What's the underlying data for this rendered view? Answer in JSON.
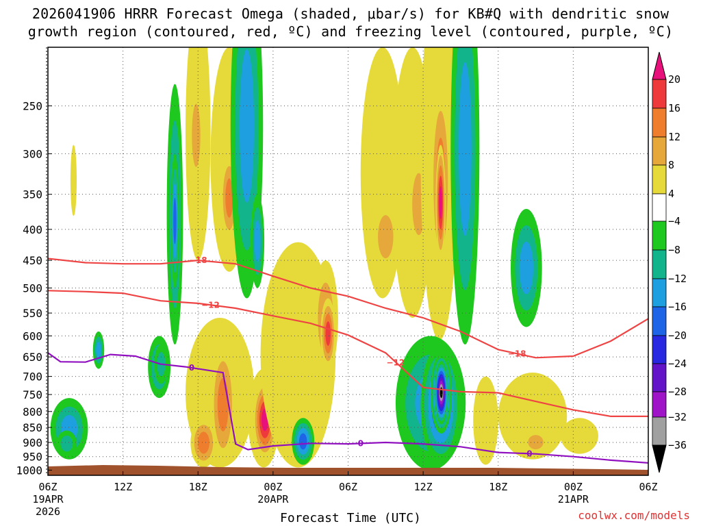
{
  "chart_data": {
    "type": "heatmap",
    "title_line1": "2026041906 HRRR Forecast Omega (shaded, μbar/s) for KB#Q with dendritic snow",
    "title_line2": "growth region (contoured, red, ºC) and freezing level (contoured, purple, ºC)",
    "xlabel": "Forecast Time (UTC)",
    "credit": "coolwx.com/models",
    "x_range_hours": [
      0,
      48
    ],
    "y_range_mb": [
      1020,
      200
    ],
    "y_ticks": [
      250,
      300,
      350,
      400,
      450,
      500,
      550,
      600,
      650,
      700,
      750,
      800,
      850,
      900,
      950,
      1000
    ],
    "x_ticks": [
      {
        "hour": 0,
        "label": "06Z",
        "date": "19APR",
        "year": "2026"
      },
      {
        "hour": 6,
        "label": "12Z"
      },
      {
        "hour": 12,
        "label": "18Z"
      },
      {
        "hour": 18,
        "label": "00Z",
        "date": "20APR"
      },
      {
        "hour": 24,
        "label": "06Z"
      },
      {
        "hour": 30,
        "label": "12Z"
      },
      {
        "hour": 36,
        "label": "18Z"
      },
      {
        "hour": 42,
        "label": "00Z",
        "date": "21APR"
      },
      {
        "hour": 48,
        "label": "06Z"
      }
    ],
    "colorbar": {
      "ticks": [
        "20",
        "16",
        "12",
        "8",
        "4",
        "−4",
        "−8",
        "−12",
        "−16",
        "−20",
        "−24",
        "−28",
        "−32",
        "−36"
      ],
      "colors": [
        "#e8107a",
        "#ee3a3a",
        "#ee7e2e",
        "#e6a83a",
        "#e6da3a",
        "#ffffff",
        "#1ec81e",
        "#12b48c",
        "#1ea0e0",
        "#1e64e6",
        "#2828e0",
        "#6414c8",
        "#a014c8",
        "#a0a0a0",
        "#000000"
      ]
    },
    "contours": [
      {
        "name": "-18 C",
        "label": "−18",
        "color": "#ee4444",
        "points": [
          [
            0,
            447
          ],
          [
            3,
            454
          ],
          [
            6,
            456
          ],
          [
            9,
            456
          ],
          [
            12,
            450
          ],
          [
            15,
            456
          ],
          [
            18,
            478
          ],
          [
            21,
            500
          ],
          [
            24,
            516
          ],
          [
            27,
            540
          ],
          [
            30,
            560
          ],
          [
            33,
            590
          ],
          [
            36,
            632
          ],
          [
            39,
            652
          ],
          [
            42,
            648
          ],
          [
            45,
            612
          ],
          [
            48,
            562
          ]
        ]
      },
      {
        "name": "-12 C",
        "label": "−12",
        "color": "#ee4444",
        "points": [
          [
            0,
            505
          ],
          [
            3,
            507
          ],
          [
            6,
            510
          ],
          [
            9,
            525
          ],
          [
            12,
            530
          ],
          [
            15,
            540
          ],
          [
            18,
            556
          ],
          [
            21,
            572
          ],
          [
            24,
            598
          ],
          [
            27,
            640
          ],
          [
            30,
            730
          ],
          [
            33,
            742
          ],
          [
            36,
            745
          ],
          [
            39,
            770
          ],
          [
            42,
            795
          ],
          [
            45,
            815
          ],
          [
            48,
            815
          ]
        ]
      },
      {
        "name": "0 C freezing level",
        "label": "0",
        "color": "#9010c0",
        "points": [
          [
            0,
            640
          ],
          [
            1,
            662
          ],
          [
            3,
            663
          ],
          [
            5,
            644
          ],
          [
            7,
            648
          ],
          [
            9,
            668
          ],
          [
            11,
            675
          ],
          [
            14,
            690
          ],
          [
            15,
            905
          ],
          [
            16,
            925
          ],
          [
            18,
            912
          ],
          [
            21,
            903
          ],
          [
            24,
            905
          ],
          [
            27,
            900
          ],
          [
            30,
            905
          ],
          [
            33,
            915
          ],
          [
            36,
            935
          ],
          [
            39,
            940
          ],
          [
            42,
            950
          ],
          [
            45,
            963
          ],
          [
            48,
            973
          ]
        ]
      }
    ],
    "omega_cells_note": "shaded omega cells: hour range, pressure range, max |value| band",
    "omega_cells": [
      {
        "t": [
          0.2,
          3.2
        ],
        "p": [
          760,
          960
        ],
        "band": 6
      },
      {
        "t": [
          0.7,
          2.3
        ],
        "p": [
          860,
          950
        ],
        "band": 8
      },
      {
        "t": [
          3.6,
          4.5
        ],
        "p": [
          590,
          680
        ],
        "band": 6
      },
      {
        "t": [
          1.8,
          2.3
        ],
        "p": [
          290,
          380
        ],
        "band": 4
      },
      {
        "t": [
          8.0,
          9.8
        ],
        "p": [
          600,
          760
        ],
        "band": 6
      },
      {
        "t": [
          8.5,
          9.6
        ],
        "p": [
          620,
          720
        ],
        "band": 8
      },
      {
        "t": [
          9.5,
          10.8
        ],
        "p": [
          230,
          620
        ],
        "band": 6
      },
      {
        "t": [
          9.8,
          10.5
        ],
        "p": [
          300,
          500
        ],
        "band": 7
      },
      {
        "t": [
          11.0,
          13.0
        ],
        "p": [
          170,
          450
        ],
        "band": 4
      },
      {
        "t": [
          11.3,
          12.4
        ],
        "p": [
          230,
          340
        ],
        "band": 3
      },
      {
        "t": [
          13.0,
          16.0
        ],
        "p": [
          200,
          470
        ],
        "band": 4
      },
      {
        "t": [
          13.8,
          15.2
        ],
        "p": [
          300,
          420
        ],
        "band": 2
      },
      {
        "t": [
          11.0,
          16.5
        ],
        "p": [
          560,
          990
        ],
        "band": 4
      },
      {
        "t": [
          11.4,
          13.5
        ],
        "p": [
          820,
          990
        ],
        "band": 2
      },
      {
        "t": [
          13.0,
          15.0
        ],
        "p": [
          620,
          980
        ],
        "band": 2
      },
      {
        "t": [
          14.6,
          17.2
        ],
        "p": [
          140,
          520
        ],
        "band": 6
      },
      {
        "t": [
          16.2,
          17.3
        ],
        "p": [
          350,
          500
        ],
        "band": 6
      },
      {
        "t": [
          16.0,
          18.5
        ],
        "p": [
          680,
          990
        ],
        "band": 4
      },
      {
        "t": [
          16.4,
          18.3
        ],
        "p": [
          710,
          960
        ],
        "band": 0
      },
      {
        "t": [
          17.0,
          23.0
        ],
        "p": [
          420,
          990
        ],
        "band": 4
      },
      {
        "t": [
          21.2,
          23.2
        ],
        "p": [
          450,
          700
        ],
        "band": 3
      },
      {
        "t": [
          21.8,
          23.0
        ],
        "p": [
          520,
          680
        ],
        "band": 1
      },
      {
        "t": [
          19.5,
          21.3
        ],
        "p": [
          820,
          980
        ],
        "band": 7
      },
      {
        "t": [
          25.0,
          28.5
        ],
        "p": [
          200,
          520
        ],
        "band": 4
      },
      {
        "t": [
          26.0,
          28.0
        ],
        "p": [
          360,
          470
        ],
        "band": 3
      },
      {
        "t": [
          27.5,
          30.8
        ],
        "p": [
          200,
          560
        ],
        "band": 4
      },
      {
        "t": [
          28.8,
          30.5
        ],
        "p": [
          300,
          440
        ],
        "band": 3
      },
      {
        "t": [
          29.8,
          32.8
        ],
        "p": [
          150,
          610
        ],
        "band": 4
      },
      {
        "t": [
          30.6,
          32.2
        ],
        "p": [
          230,
          480
        ],
        "band": 2
      },
      {
        "t": [
          31.0,
          31.8
        ],
        "p": [
          290,
          450
        ],
        "band": 0
      },
      {
        "t": [
          32.2,
          34.5
        ],
        "p": [
          140,
          620
        ],
        "band": 6
      },
      {
        "t": [
          27.8,
          33.4
        ],
        "p": [
          600,
          1000
        ],
        "band": 6
      },
      {
        "t": [
          29.8,
          33.0
        ],
        "p": [
          620,
          980
        ],
        "band": 9
      },
      {
        "t": [
          30.6,
          32.3
        ],
        "p": [
          640,
          870
        ],
        "band": 11
      },
      {
        "t": [
          30.9,
          32.0
        ],
        "p": [
          660,
          840
        ],
        "band": 14
      },
      {
        "t": [
          34.0,
          36.0
        ],
        "p": [
          700,
          980
        ],
        "band": 4
      },
      {
        "t": [
          36.0,
          41.5
        ],
        "p": [
          690,
          960
        ],
        "band": 4
      },
      {
        "t": [
          38.0,
          40.0
        ],
        "p": [
          860,
          940
        ],
        "band": 3
      },
      {
        "t": [
          37.0,
          39.5
        ],
        "p": [
          370,
          580
        ],
        "band": 6
      },
      {
        "t": [
          41.0,
          44.0
        ],
        "p": [
          820,
          940
        ],
        "band": 4
      }
    ]
  }
}
